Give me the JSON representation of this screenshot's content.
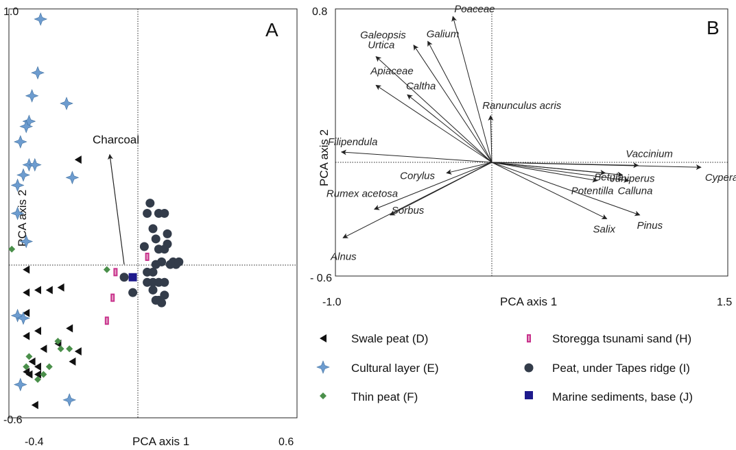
{
  "chart_data": [
    {
      "panel": "A",
      "type": "scatter",
      "xlabel": "PCA axis 1",
      "ylabel": "PCA axis 2",
      "xlim": [
        -0.4,
        0.6
      ],
      "ylim": [
        -0.6,
        1.0
      ],
      "x_ticks": [
        "-0.4",
        "0.6"
      ],
      "y_ticks": [
        "1.0",
        "-0.6"
      ],
      "origin": [
        0,
        0
      ],
      "vector": {
        "label": "Charcoal",
        "x": -0.05,
        "y": 0.43
      },
      "series": [
        {
          "name": "Swale peat (D)",
          "marker": "triangle-left",
          "color": "#111111",
          "points": [
            [
              -0.16,
              0.41
            ],
            [
              -0.34,
              -0.02
            ],
            [
              -0.34,
              -0.11
            ],
            [
              -0.3,
              -0.1
            ],
            [
              -0.26,
              -0.1
            ],
            [
              -0.22,
              -0.09
            ],
            [
              -0.34,
              -0.19
            ],
            [
              -0.34,
              -0.28
            ],
            [
              -0.3,
              -0.26
            ],
            [
              -0.23,
              -0.31
            ],
            [
              -0.28,
              -0.33
            ],
            [
              -0.32,
              -0.38
            ],
            [
              -0.3,
              -0.4
            ],
            [
              -0.33,
              -0.43
            ],
            [
              -0.34,
              -0.42
            ],
            [
              -0.3,
              -0.43
            ],
            [
              -0.18,
              -0.38
            ],
            [
              -0.19,
              -0.25
            ],
            [
              -0.16,
              -0.34
            ],
            [
              -0.31,
              -0.55
            ]
          ]
        },
        {
          "name": "Cultural layer (E)",
          "marker": "star4",
          "color": "#6d9ccf",
          "points": [
            [
              -0.29,
              0.96
            ],
            [
              -0.3,
              0.75
            ],
            [
              -0.32,
              0.66
            ],
            [
              -0.2,
              0.63
            ],
            [
              -0.33,
              0.56
            ],
            [
              -0.34,
              0.54
            ],
            [
              -0.36,
              0.48
            ],
            [
              -0.33,
              0.39
            ],
            [
              -0.31,
              0.39
            ],
            [
              -0.35,
              0.35
            ],
            [
              -0.37,
              0.31
            ],
            [
              -0.18,
              0.34
            ],
            [
              -0.37,
              0.2
            ],
            [
              -0.34,
              0.09
            ],
            [
              -0.37,
              -0.2
            ],
            [
              -0.35,
              -0.21
            ],
            [
              -0.36,
              -0.47
            ],
            [
              -0.19,
              -0.53
            ]
          ]
        },
        {
          "name": "Thin peat (F)",
          "marker": "diamond",
          "color": "#4a8f4a",
          "points": [
            [
              -0.39,
              0.06
            ],
            [
              -0.33,
              -0.36
            ],
            [
              -0.34,
              -0.4
            ],
            [
              -0.26,
              -0.4
            ],
            [
              -0.28,
              -0.43
            ],
            [
              -0.3,
              -0.45
            ],
            [
              -0.23,
              -0.3
            ],
            [
              -0.22,
              -0.33
            ],
            [
              -0.19,
              -0.33
            ],
            [
              -0.06,
              -0.02
            ]
          ]
        },
        {
          "name": "Storegga tsunami sand (H)",
          "marker": "bar",
          "color": "#c8328c",
          "points": [
            [
              -0.06,
              -0.22
            ],
            [
              -0.03,
              -0.03
            ],
            [
              0.08,
              0.03
            ],
            [
              -0.04,
              -0.13
            ]
          ]
        },
        {
          "name": "Peat, under Tapes ridge (I)",
          "marker": "circle",
          "color": "#333c4a",
          "points": [
            [
              0.0,
              -0.05
            ],
            [
              0.03,
              -0.11
            ],
            [
              0.07,
              0.07
            ],
            [
              0.09,
              0.24
            ],
            [
              0.1,
              0.14
            ],
            [
              0.11,
              0.1
            ],
            [
              0.08,
              0.2
            ],
            [
              0.12,
              0.2
            ],
            [
              0.14,
              0.2
            ],
            [
              0.15,
              0.12
            ],
            [
              0.15,
              0.08
            ],
            [
              0.12,
              0.06
            ],
            [
              0.14,
              0.06
            ],
            [
              0.16,
              0.0
            ],
            [
              0.17,
              0.01
            ],
            [
              0.18,
              0.0
            ],
            [
              0.19,
              0.01
            ],
            [
              0.13,
              0.01
            ],
            [
              0.11,
              0.0
            ],
            [
              0.1,
              -0.03
            ],
            [
              0.08,
              -0.03
            ],
            [
              0.08,
              -0.07
            ],
            [
              0.1,
              -0.07
            ],
            [
              0.12,
              -0.07
            ],
            [
              0.14,
              -0.07
            ],
            [
              0.1,
              -0.1
            ],
            [
              0.14,
              -0.12
            ],
            [
              0.12,
              -0.14
            ],
            [
              0.11,
              -0.14
            ],
            [
              0.13,
              -0.15
            ]
          ]
        },
        {
          "name": "Marine sediments, base (J)",
          "marker": "square",
          "color": "#1e1a8c",
          "points": [
            [
              0.03,
              -0.05
            ]
          ]
        }
      ]
    },
    {
      "panel": "B",
      "type": "biplot",
      "xlabel": "PCA axis 1",
      "ylabel": "PCA axis 2",
      "xlim": [
        -1.0,
        1.5
      ],
      "ylim": [
        -0.6,
        0.8
      ],
      "x_ticks": [
        "-1.0",
        "1.5"
      ],
      "y_ticks": [
        "0.8",
        "-0.6"
      ],
      "vectors": [
        {
          "label": "Poaceae",
          "x": -0.26,
          "y": 0.76
        },
        {
          "label": "Galium",
          "x": -0.42,
          "y": 0.63
        },
        {
          "label": "Galeopsis",
          "x": -0.51,
          "y": 0.61
        },
        {
          "label": "Urtica",
          "x": -0.75,
          "y": 0.55
        },
        {
          "label": "Apiaceae",
          "x": -0.75,
          "y": 0.4
        },
        {
          "label": "Caltha",
          "x": -0.55,
          "y": 0.35
        },
        {
          "label": "Ranunculus acris",
          "x": -0.02,
          "y": 0.24
        },
        {
          "label": "Filipendula",
          "x": -0.97,
          "y": 0.05
        },
        {
          "label": "Corylus",
          "x": -0.3,
          "y": -0.06
        },
        {
          "label": "Rumex acetosa",
          "x": -0.76,
          "y": -0.25
        },
        {
          "label": "Sorbus",
          "x": -0.66,
          "y": -0.28
        },
        {
          "label": "Alnus",
          "x": -0.96,
          "y": -0.4
        },
        {
          "label": "Vaccinium",
          "x": 0.92,
          "y": -0.02
        },
        {
          "label": "Betula",
          "x": 0.71,
          "y": -0.06
        },
        {
          "label": "Juniperus",
          "x": 0.82,
          "y": -0.07
        },
        {
          "label": "Cyperaceae",
          "x": 1.32,
          "y": -0.03
        },
        {
          "label": "Potentilla",
          "x": 0.66,
          "y": -0.1
        },
        {
          "label": "Calluna",
          "x": 0.86,
          "y": -0.1
        },
        {
          "label": "Salix",
          "x": 0.72,
          "y": -0.3
        },
        {
          "label": "Pinus",
          "x": 0.93,
          "y": -0.28
        }
      ]
    }
  ],
  "panel_labels": {
    "a": "A",
    "b": "B"
  },
  "axis_texts": {
    "a_xlabel": "PCA axis 1",
    "a_ylabel": "PCA axis 2",
    "a_xmin": "-0.4",
    "a_xmax": "0.6",
    "a_ymax": "1.0",
    "a_ymin": "-0.6",
    "b_xlabel": "PCA axis 1",
    "b_ylabel": "PCA axis 2",
    "b_xmin": "-1.0",
    "b_xmax": "1.5",
    "b_ymax": "0.8",
    "b_ymin": "- 0.6"
  },
  "legend": {
    "items": [
      {
        "label": "Swale peat (D)"
      },
      {
        "label": "Cultural layer (E)"
      },
      {
        "label": "Thin peat (F)"
      },
      {
        "label": "Storegga tsunami sand (H)"
      },
      {
        "label": " Peat, under Tapes ridge (I)"
      },
      {
        "label": "Marine sediments, base (J)"
      }
    ]
  }
}
